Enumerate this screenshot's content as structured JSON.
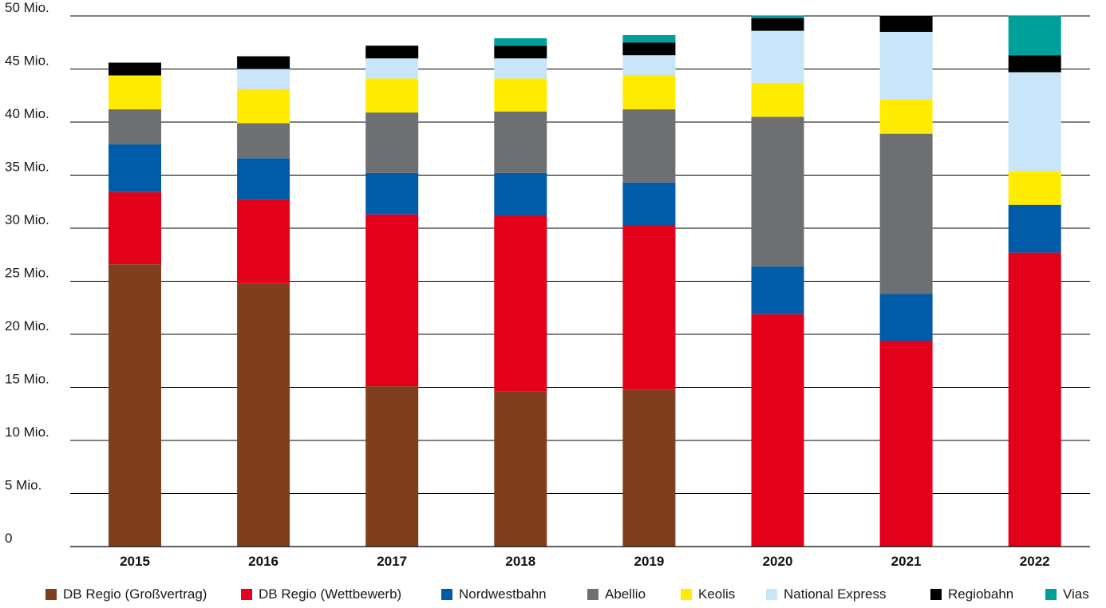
{
  "chart_data": {
    "type": "bar",
    "stacked": true,
    "title": "",
    "xlabel": "",
    "ylabel": "",
    "ylim": [
      0,
      50
    ],
    "grid": true,
    "legend_position": "bottom",
    "categories": [
      "2015",
      "2016",
      "2017",
      "2018",
      "2019",
      "2020",
      "2021",
      "2022"
    ],
    "y_ticks": [
      {
        "value": 0,
        "label": "0"
      },
      {
        "value": 5,
        "label": "5 Mio."
      },
      {
        "value": 10,
        "label": "10 Mio."
      },
      {
        "value": 15,
        "label": "15 Mio."
      },
      {
        "value": 20,
        "label": "20 Mio."
      },
      {
        "value": 25,
        "label": "25 Mio."
      },
      {
        "value": 30,
        "label": "30 Mio."
      },
      {
        "value": 35,
        "label": "35 Mio."
      },
      {
        "value": 40,
        "label": "40 Mio."
      },
      {
        "value": 45,
        "label": "45 Mio."
      },
      {
        "value": 50,
        "label": "50  Mio."
      }
    ],
    "series": [
      {
        "name": "DB Regio (Großvertrag)",
        "color": "#7f3f1f",
        "values": [
          26.6,
          24.8,
          15.1,
          14.6,
          14.8,
          0,
          0,
          0
        ]
      },
      {
        "name": "DB Regio (Wettbewerb)",
        "color": "#e2001a",
        "values": [
          6.8,
          7.9,
          16.2,
          16.6,
          15.5,
          21.9,
          19.4,
          27.7
        ]
      },
      {
        "name": "Nordwestbahn",
        "color": "#005ca9",
        "values": [
          4.5,
          3.9,
          3.9,
          4.0,
          4.0,
          4.5,
          4.4,
          4.5
        ]
      },
      {
        "name": "Abellio",
        "color": "#6e6f72",
        "values": [
          3.3,
          3.3,
          5.7,
          5.8,
          6.9,
          14.1,
          15.1,
          0
        ]
      },
      {
        "name": "Keolis",
        "color": "#ffec00",
        "values": [
          3.2,
          3.2,
          3.2,
          3.1,
          3.2,
          3.2,
          3.2,
          3.2
        ]
      },
      {
        "name": "National Express",
        "color": "#c9e5f9",
        "values": [
          0,
          1.9,
          1.9,
          1.9,
          1.9,
          4.9,
          6.4,
          9.3
        ]
      },
      {
        "name": "Regiobahn",
        "color": "#000000",
        "values": [
          1.2,
          1.2,
          1.2,
          1.2,
          1.2,
          1.2,
          1.5,
          1.6
        ]
      },
      {
        "name": "Vias",
        "color": "#00a09a",
        "values": [
          0,
          0,
          0,
          0.7,
          0.7,
          0.7,
          0.8,
          4.6
        ]
      }
    ]
  }
}
